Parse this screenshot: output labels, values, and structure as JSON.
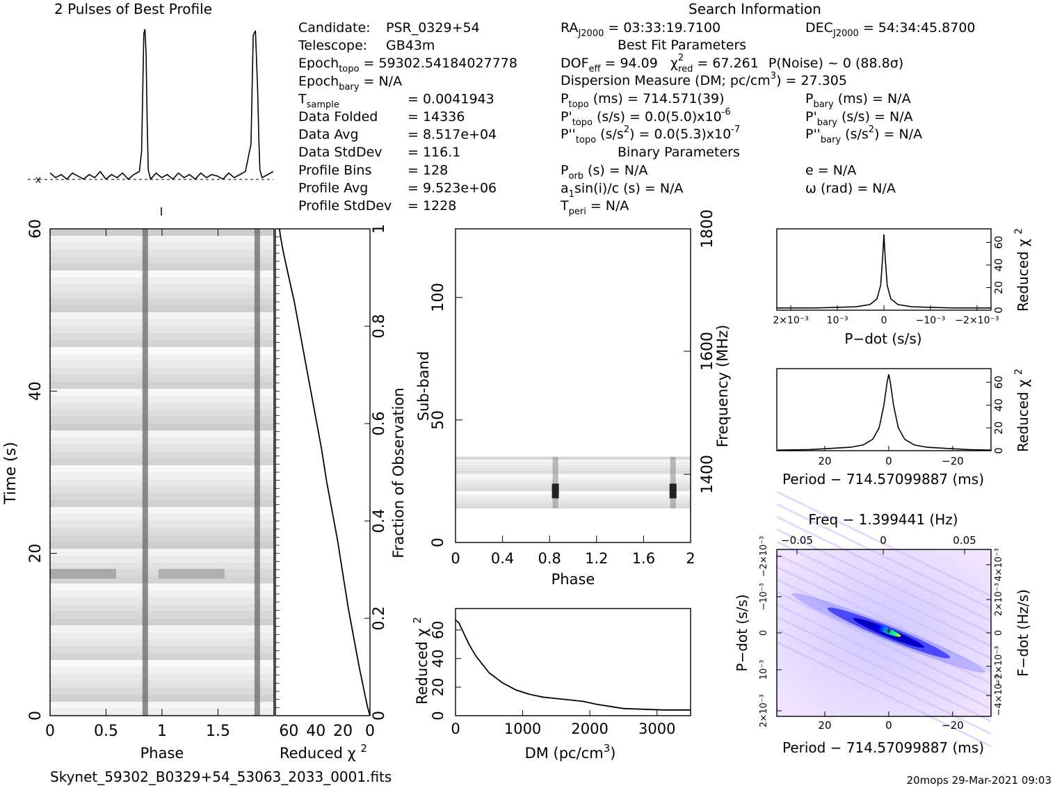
{
  "header": {
    "profile_title": "2 Pulses of Best Profile",
    "search_title": "Search Information",
    "best_fit_title": "Best Fit Parameters",
    "binary_title": "Binary Parameters"
  },
  "info_col1": [
    {
      "label": "Candidate:",
      "value": "PSR_0329+54"
    },
    {
      "label": "Telescope:",
      "value": "GB43m"
    },
    {
      "label": "Epoch",
      "sub": "topo",
      "value": "= 59302.54184027778"
    },
    {
      "label": "Epoch",
      "sub": "bary",
      "value": "= N/A"
    },
    {
      "label": "T",
      "sub": "sample",
      "value": "=   0.0041943"
    },
    {
      "label": "Data Folded",
      "value": "=   14336"
    },
    {
      "label": "Data Avg",
      "value": "=   8.517e+04"
    },
    {
      "label": "Data StdDev",
      "value": "=   116.1"
    },
    {
      "label": "Profile Bins",
      "value": "=   128"
    },
    {
      "label": "Profile Avg",
      "value": "=   9.523e+06"
    },
    {
      "label": "Profile StdDev",
      "value": "=   1228"
    }
  ],
  "info_col2": {
    "ra": "RA",
    "ra_sub": "J2000",
    "ra_value": "= 03:33:19.7100",
    "dof": "DOF",
    "dof_sub": "eff",
    "dof_value": "= 94.09",
    "chi": "χ",
    "chi_sup": "2",
    "chi_sub": "red",
    "chi_value": "= 67.261",
    "pnoise": "P(Noise) ~ 0    (88.8σ)",
    "dm_line": "Dispersion Measure (DM; pc/cm",
    "dm_sup": "3",
    "dm_value": ") = 27.305",
    "ptopo": "P",
    "ptopo_sub": "topo",
    "ptopo_value": "(ms) =  714.571(39)",
    "pdot": "P'",
    "pdot_sub": "topo",
    "pdot_value": "(s/s) = 0.0(5.0)x10",
    "pdot_exp": "-6",
    "pddot": "P''",
    "pddot_sub": "topo",
    "pddot_value": "(s/s",
    "pddot_sup": "2",
    "pddot_value2": ") = 0.0(5.3)x10",
    "pddot_exp": "-7",
    "porb": "P",
    "porb_sub": "orb",
    "porb_value": "(s) = N/A",
    "a1": "a",
    "a1_sub": "1",
    "a1_value": "sin(i)/c (s) = N/A",
    "tperi": "T",
    "tperi_sub": "peri",
    "tperi_value": "= N/A"
  },
  "info_col3": {
    "dec": "DEC",
    "dec_sub": "J2000",
    "dec_value": "= 54:34:45.8700",
    "pbary": "P",
    "pbary_sub": "bary",
    "pbary_value": "(ms) = N/A",
    "pdbary": "P'",
    "pdbary_sub": "bary",
    "pdbary_value": "(s/s) = N/A",
    "pddbary": "P''",
    "pddbary_sub": "bary",
    "pddbary_value": "(s/s",
    "pddbary_sup": "2",
    "pddbary_value2": ") = N/A",
    "e": "e = N/A",
    "omega": "ω (rad) = N/A"
  },
  "footer": {
    "filename": "Skynet_59302_B0329+54_53063_2033_0001.fits",
    "stamp": "20mops 29-Mar-2021 09:03"
  },
  "chart_data": [
    {
      "type": "line",
      "id": "profile",
      "title": "2 Pulses of Best Profile",
      "x": [
        0,
        0.05,
        0.1,
        0.15,
        0.2,
        0.25,
        0.3,
        0.35,
        0.4,
        0.45,
        0.5,
        0.55,
        0.6,
        0.65,
        0.7,
        0.75,
        0.8,
        0.82,
        0.84,
        0.85,
        0.86,
        0.87,
        0.88,
        0.9,
        0.95,
        1.0,
        1.05,
        1.1,
        1.15,
        1.2,
        1.25,
        1.3,
        1.35,
        1.4,
        1.45,
        1.5,
        1.55,
        1.6,
        1.65,
        1.7,
        1.75,
        1.8,
        1.82,
        1.84,
        1.85,
        1.86,
        1.87,
        1.88,
        1.9,
        1.95,
        2.0
      ],
      "values": [
        0.06,
        0.03,
        0.05,
        0.02,
        0.06,
        0.04,
        0.02,
        0.05,
        0.03,
        0.07,
        0.02,
        0.05,
        0.03,
        0.06,
        0.02,
        0.05,
        0.07,
        0.2,
        0.97,
        1.0,
        0.85,
        0.4,
        0.08,
        0.02,
        0.06,
        0.03,
        0.05,
        0.02,
        0.06,
        0.03,
        0.05,
        0.02,
        0.06,
        0.03,
        0.05,
        0.04,
        0.02,
        0.06,
        0.03,
        0.05,
        0.07,
        0.25,
        0.96,
        0.99,
        0.8,
        0.6,
        0.3,
        0.08,
        0.03,
        0.05,
        0.07
      ]
    },
    {
      "type": "heatmap",
      "id": "time-phase",
      "xlabel": "Phase",
      "ylabel": "Time (s)",
      "xlim": [
        0,
        2
      ],
      "ylim": [
        0,
        60
      ],
      "x_ticks": [
        "0",
        "0.5",
        "1",
        "1.5"
      ],
      "y_ticks": [
        "0",
        "20",
        "40",
        "60"
      ],
      "pulse_phases": [
        0.85,
        1.85
      ]
    },
    {
      "type": "line",
      "id": "time-chi2",
      "xlabel": "Reduced χ",
      "xlabel_sup": "2",
      "ylabel_right": "Fraction of Observation",
      "x_ticks": [
        "60",
        "40",
        "20",
        "0"
      ],
      "y_ticks": [
        "0",
        "0.2",
        "0.4",
        "0.6",
        "0.8",
        "1"
      ],
      "xlim": [
        70,
        0
      ],
      "x": [
        0,
        2,
        5,
        8,
        12,
        16,
        20,
        24,
        28,
        32,
        36,
        40,
        44,
        48,
        52,
        56,
        60,
        64,
        66,
        67
      ],
      "values": [
        0,
        0.02,
        0.06,
        0.1,
        0.16,
        0.22,
        0.29,
        0.36,
        0.42,
        0.48,
        0.55,
        0.61,
        0.67,
        0.73,
        0.79,
        0.85,
        0.9,
        0.95,
        0.98,
        1.0
      ]
    },
    {
      "type": "heatmap",
      "id": "subband-phase",
      "xlabel": "Phase",
      "ylabel": "Sub-band",
      "ylabel_right": "Frequency (MHz)",
      "x_ticks": [
        "0",
        "0.4",
        "0.8",
        "1.2",
        "1.6",
        "2"
      ],
      "y_ticks": [
        "0",
        "50",
        "100"
      ],
      "y_right_ticks": [
        "1400",
        "1600",
        "1800"
      ],
      "xlim": [
        0,
        2
      ],
      "ylim": [
        0,
        128
      ],
      "data_band": [
        14,
        35
      ],
      "pulse_phases": [
        0.85,
        1.85
      ]
    },
    {
      "type": "line",
      "id": "dm-chi2",
      "xlabel": "DM (pc/cm",
      "xlabel_sup": "3",
      "xlabel_end": ")",
      "ylabel": "Reduced χ",
      "ylabel_sup": "2",
      "x_ticks": [
        "0",
        "1000",
        "2000",
        "3000"
      ],
      "y_ticks": [
        "0",
        "20",
        "40",
        "60"
      ],
      "xlim": [
        0,
        3500
      ],
      "ylim": [
        0,
        75
      ],
      "x": [
        0,
        50,
        100,
        200,
        300,
        400,
        500,
        700,
        900,
        1100,
        1300,
        1500,
        1700,
        1900,
        2100,
        2300,
        2500,
        2800,
        3100,
        3500
      ],
      "values": [
        67,
        65,
        60,
        50,
        42,
        36,
        30,
        23,
        18,
        15,
        13,
        12,
        11,
        10,
        8,
        6.5,
        5,
        4.5,
        4,
        4
      ]
    },
    {
      "type": "line",
      "id": "pdot-chi2",
      "xlabel": "P−dot (s/s)",
      "ylabel_right": "Reduced χ",
      "ylabel_right_sup": "2",
      "x_ticks": [
        "2×10⁻³",
        "10⁻³",
        "0",
        "−10⁻³",
        "−2×10⁻³"
      ],
      "y_ticks": [
        "0",
        "20",
        "40",
        "60"
      ],
      "xlim": [
        0.0023,
        -0.0023
      ],
      "ylim": [
        0,
        72
      ],
      "x": [
        0.0023,
        0.0015,
        0.001,
        0.0006,
        0.0003,
        0.00015,
        7e-05,
        3e-05,
        0,
        -3e-05,
        -7e-05,
        -0.00015,
        -0.0003,
        -0.0006,
        -0.001,
        -0.0015,
        -0.0023
      ],
      "values": [
        2,
        2,
        2.5,
        3,
        5,
        10,
        22,
        45,
        67,
        45,
        22,
        10,
        5,
        3,
        2.5,
        2,
        2
      ]
    },
    {
      "type": "line",
      "id": "period-chi2",
      "xlabel": "Period − 714.57099887 (ms)",
      "ylabel_right": "Reduced χ",
      "ylabel_right_sup": "2",
      "x_ticks": [
        "20",
        "0",
        "−20"
      ],
      "y_ticks": [
        "0",
        "20",
        "40",
        "60"
      ],
      "xlim": [
        35,
        -32
      ],
      "ylim": [
        0,
        72
      ],
      "x": [
        35,
        25,
        18,
        12,
        8,
        5,
        3,
        1.5,
        0.5,
        0,
        -0.5,
        -1.5,
        -3,
        -5,
        -8,
        -12,
        -18,
        -25,
        -32
      ],
      "values": [
        0.5,
        1,
        2,
        3,
        5,
        10,
        20,
        40,
        60,
        67,
        60,
        40,
        20,
        10,
        5,
        3,
        2,
        1,
        0.5
      ]
    },
    {
      "type": "heatmap",
      "id": "period-pdot",
      "xlabel": "Period − 714.57099887 (ms)",
      "xlabel_top": "Freq − 1.399441 (Hz)",
      "ylabel": "P−dot (s/s)",
      "ylabel_right": "F−dot (Hz/s)",
      "x_ticks": [
        "20",
        "0",
        "−20"
      ],
      "x_top_ticks": [
        "−0.05",
        "0",
        "0.05"
      ],
      "y_ticks": [
        "2×10⁻³",
        "10⁻³",
        "0",
        "−10⁻³",
        "−2×10⁻³"
      ],
      "y_right_ticks": [
        "−4×10⁻³",
        "−2×10⁻³",
        "0",
        "2×10⁻³",
        "4×10⁻³"
      ],
      "xlim": [
        35,
        -32
      ],
      "ylim": [
        0.0023,
        -0.0023
      ],
      "peak": [
        0,
        0
      ]
    }
  ]
}
